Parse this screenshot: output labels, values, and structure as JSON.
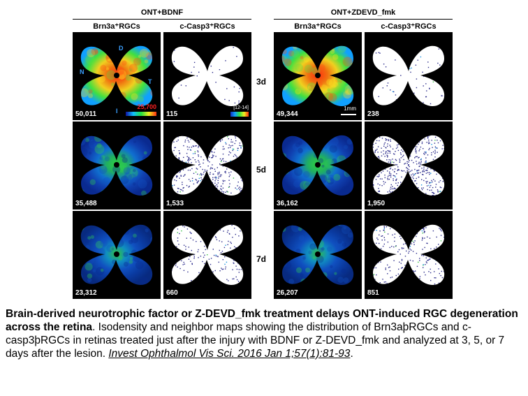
{
  "figure": {
    "groups": [
      {
        "title": "ONT+BDNF"
      },
      {
        "title": "ONT+ZDEVD_fmk"
      }
    ],
    "column_headers": [
      "Brn3a⁺RGCs",
      "c-Casp3⁺RGCs",
      "Brn3a⁺RGCs",
      "c-Casp3⁺RGCs"
    ],
    "row_labels": [
      "3d",
      "5d",
      "7d"
    ],
    "counts": [
      [
        "50,011",
        "115",
        "49,344",
        "238"
      ],
      [
        "35,488",
        "1,533",
        "36,162",
        "1,950"
      ],
      [
        "23,312",
        "660",
        "26,207",
        "851"
      ]
    ],
    "compass": {
      "d": "D",
      "n": "N",
      "t": "T",
      "i": "I"
    },
    "isodensity_max": "25,700",
    "neighbor_range": "[12-14]",
    "scale_label": "1mm",
    "colors": {
      "density_high": "#ff3010",
      "density_low": "#1010a0",
      "dot": "#2a2a8a"
    }
  },
  "caption": {
    "bold": "Brain-derived neurotrophic factor or Z-DEVD_fmk treatment delays ONT-induced RGC degeneration across the retina",
    "body": ". Isodensity and neighbor maps showing the distribution of Brn3aþRGCs and c-casp3þRGCs in retinas treated just after the injury with BDNF or Z-DEVD_fmk and analyzed at 3, 5, or 7 days after the lesion. ",
    "citation": "Invest Ophthalmol Vis Sci. 2016 Jan 1;57(1):81-93",
    "end": "."
  }
}
